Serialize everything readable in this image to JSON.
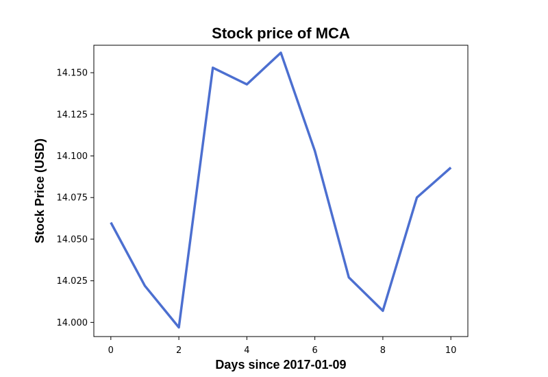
{
  "chart_data": {
    "type": "line",
    "title": "Stock price of MCA",
    "xlabel": "Days since 2017-01-09",
    "ylabel": "Stock Price (USD)",
    "xlim": [
      -0.5,
      10.5
    ],
    "ylim": [
      13.9915,
      14.1665
    ],
    "x_ticks": [
      0,
      2,
      4,
      6,
      8,
      10
    ],
    "y_ticks": [
      14.0,
      14.025,
      14.05,
      14.075,
      14.1,
      14.125,
      14.15
    ],
    "y_tick_decimals": 3,
    "grid": false,
    "series": [
      {
        "name": "MCA",
        "color": "#4c6fd0",
        "x": [
          0,
          1,
          2,
          3,
          4,
          5,
          6,
          7,
          8,
          9,
          10
        ],
        "values": [
          14.06,
          14.022,
          13.997,
          14.153,
          14.143,
          14.162,
          14.103,
          14.027,
          14.007,
          14.075,
          14.093
        ]
      }
    ]
  }
}
